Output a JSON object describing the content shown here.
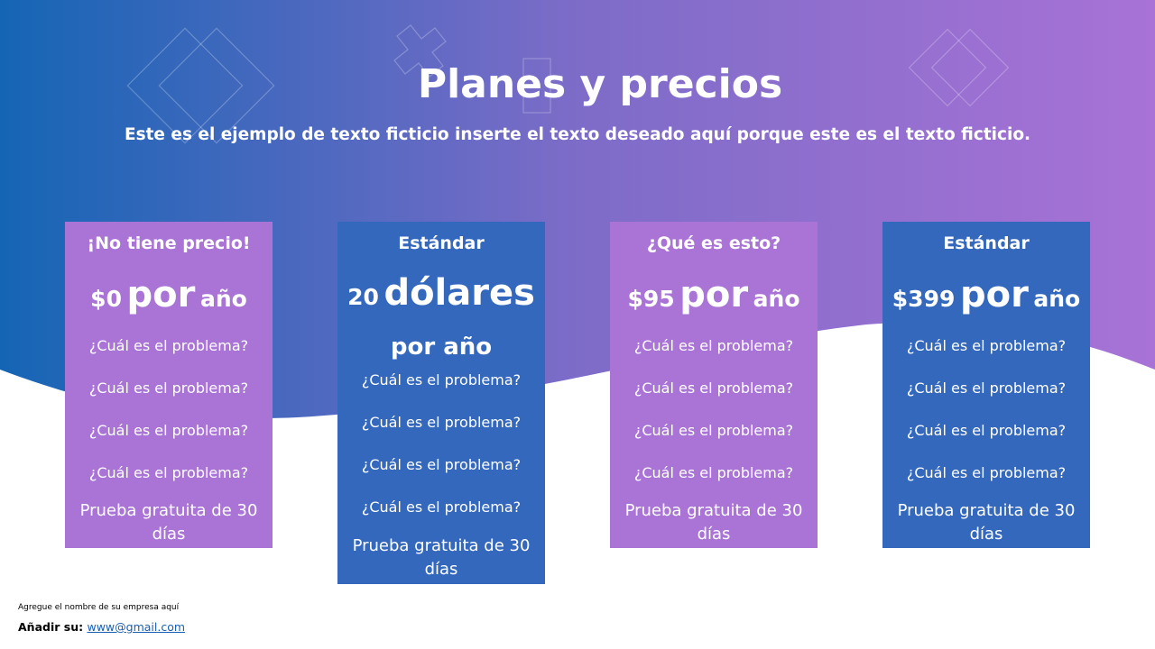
{
  "colors": {
    "gradient_start": "#1565B5",
    "gradient_end": "#A872D6",
    "card_purple": "#A974D6",
    "card_blue": "#3468BD"
  },
  "header": {
    "title": "Planes y precios",
    "subtitle": "Este es el ejemplo de texto ficticio inserte el texto deseado aquí porque este es el texto ficticio."
  },
  "plans": [
    {
      "name": "¡No tiene precio!",
      "amount": "$0",
      "per": "por",
      "period": "año",
      "features": [
        "¿Cuál es el problema?",
        "¿Cuál es el problema?",
        "¿Cuál es el problema?",
        "¿Cuál es el problema?"
      ],
      "trial": "Prueba gratuita de 30 días"
    },
    {
      "name": "Estándar",
      "amount": "20",
      "per": "dólares",
      "period": "por año",
      "features": [
        "¿Cuál es el problema?",
        "¿Cuál es el problema?",
        "¿Cuál es el problema?",
        "¿Cuál es el problema?"
      ],
      "trial": "Prueba gratuita de 30 días"
    },
    {
      "name": "¿Qué es esto?",
      "amount": "$95",
      "per": "por",
      "period": "año",
      "features": [
        "¿Cuál es el problema?",
        "¿Cuál es el problema?",
        "¿Cuál es el problema?",
        "¿Cuál es el problema?"
      ],
      "trial": "Prueba gratuita de 30 días"
    },
    {
      "name": "Estándar",
      "amount": "$399",
      "per": "por",
      "period": "año",
      "features": [
        "¿Cuál es el problema?",
        "¿Cuál es el problema?",
        "¿Cuál es el problema?",
        "¿Cuál es el problema?"
      ],
      "trial": "Prueba gratuita de 30 días"
    }
  ],
  "footer": {
    "company": "Agregue el nombre de su empresa aquí",
    "add_label": "Añadir su:",
    "email": "www@gmail.com"
  }
}
